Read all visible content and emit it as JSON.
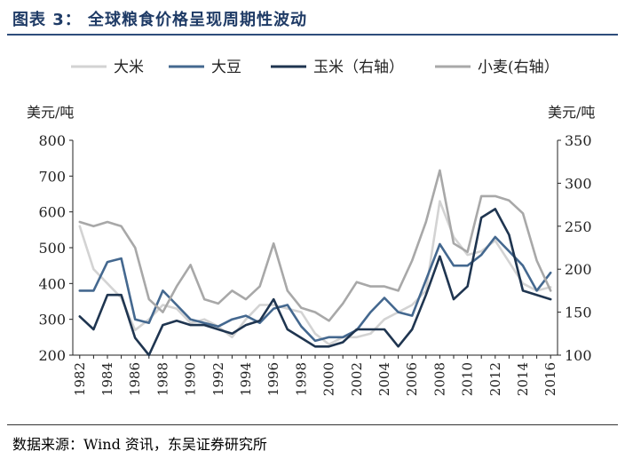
{
  "header": {
    "title": "图表 3：  全球粮食价格呈现周期性波动"
  },
  "footer": {
    "source": "数据来源：Wind 资讯，东吴证券研究所"
  },
  "chart_data": {
    "type": "line",
    "x": [
      1982,
      1983,
      1984,
      1985,
      1986,
      1987,
      1988,
      1989,
      1990,
      1991,
      1992,
      1993,
      1994,
      1995,
      1996,
      1997,
      1998,
      1999,
      2000,
      2001,
      2002,
      2003,
      2004,
      2005,
      2006,
      2007,
      2008,
      2009,
      2010,
      2011,
      2012,
      2013,
      2014,
      2015,
      2016
    ],
    "x_tick_labels": [
      "1982",
      "1984",
      "1986",
      "1988",
      "1990",
      "1992",
      "1994",
      "1996",
      "1998",
      "2000",
      "2002",
      "2004",
      "2006",
      "2008",
      "2010",
      "2012",
      "2014",
      "2016"
    ],
    "y_left": {
      "unit": "美元/吨",
      "ylim": [
        200,
        800
      ],
      "ticks": [
        "200",
        "300",
        "400",
        "500",
        "600",
        "700",
        "800"
      ]
    },
    "y_right": {
      "unit": "美元/吨",
      "ylim": [
        100,
        350
      ],
      "ticks": [
        "100",
        "150",
        "200",
        "250",
        "300",
        "350"
      ]
    },
    "legend_position": "top",
    "series": [
      {
        "name": "大米",
        "axis": "left",
        "color": "#d3d3d3",
        "values": [
          560,
          440,
          400,
          360,
          270,
          300,
          340,
          330,
          290,
          300,
          280,
          250,
          300,
          340,
          340,
          330,
          320,
          260,
          230,
          250,
          250,
          260,
          300,
          320,
          340,
          380,
          630,
          530,
          480,
          490,
          520,
          460,
          400,
          380,
          390
        ]
      },
      {
        "name": "大豆",
        "axis": "left",
        "color": "#44688f",
        "values": [
          380,
          380,
          460,
          470,
          300,
          290,
          380,
          340,
          300,
          290,
          280,
          300,
          310,
          290,
          330,
          340,
          280,
          240,
          250,
          250,
          270,
          320,
          360,
          320,
          310,
          410,
          510,
          450,
          450,
          480,
          530,
          490,
          450,
          380,
          430
        ]
      },
      {
        "name": "玉米（右轴）",
        "axis": "right",
        "color": "#1f3550",
        "values": [
          145,
          130,
          170,
          170,
          120,
          100,
          135,
          140,
          135,
          135,
          130,
          125,
          135,
          140,
          165,
          130,
          120,
          110,
          110,
          115,
          130,
          130,
          130,
          110,
          130,
          170,
          215,
          165,
          180,
          260,
          270,
          240,
          175,
          170,
          165
        ]
      },
      {
        "name": "小麦(右轴）",
        "axis": "right",
        "color": "#a8a8a8",
        "values": [
          255,
          250,
          255,
          250,
          225,
          165,
          150,
          180,
          205,
          165,
          160,
          175,
          165,
          180,
          230,
          175,
          155,
          150,
          140,
          160,
          185,
          180,
          180,
          175,
          210,
          255,
          315,
          230,
          220,
          285,
          285,
          280,
          265,
          210,
          175
        ]
      }
    ]
  }
}
